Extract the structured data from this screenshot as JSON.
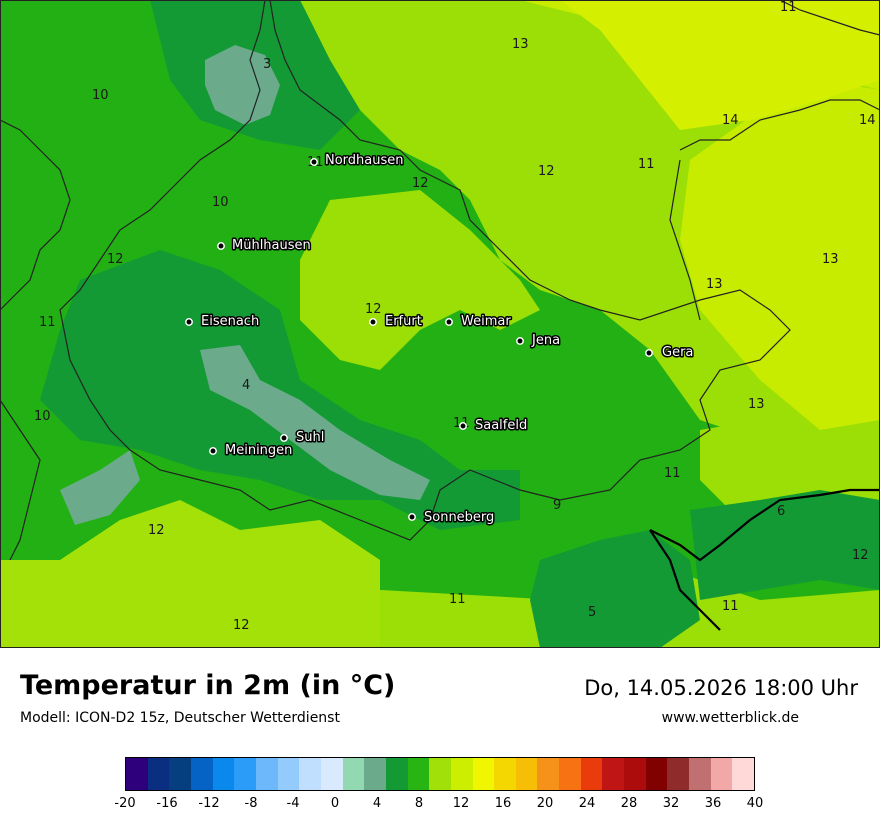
{
  "title": "Temperatur in 2m (in °C)",
  "model": "Modell: ICON-D2 15z, Deutscher Wetterdienst",
  "datetime": "Do, 14.05.2026 18:00 Uhr",
  "website": "www.wetterblick.de",
  "cities": [
    {
      "name": "Nordhausen"
    },
    {
      "name": "Mühlhausen"
    },
    {
      "name": "Eisenach"
    },
    {
      "name": "Erfurt"
    },
    {
      "name": "Weimar"
    },
    {
      "name": "Jena"
    },
    {
      "name": "Gera"
    },
    {
      "name": "Saalfeld"
    },
    {
      "name": "Suhl"
    },
    {
      "name": "Meiningen"
    },
    {
      "name": "Sonneberg"
    }
  ],
  "isolabels": [
    "11",
    "13",
    "3",
    "10",
    "14",
    "14",
    "11",
    "12",
    "12",
    "11",
    "10",
    "12",
    "13",
    "13",
    "11",
    "12",
    "4",
    "13",
    "10",
    "11",
    "11",
    "9",
    "6",
    "12",
    "12",
    "11",
    "11",
    "12",
    "5"
  ],
  "legend": {
    "ticks": [
      "-20",
      "-16",
      "-12",
      "-8",
      "-4",
      "0",
      "4",
      "8",
      "12",
      "16",
      "20",
      "24",
      "28",
      "32",
      "36",
      "40"
    ],
    "colors": [
      "#2e007c",
      "#0b2f80",
      "#063f80",
      "#0563c6",
      "#0b88ec",
      "#2b9cf7",
      "#6cb8fb",
      "#94cbfd",
      "#c0defe",
      "#d9eafe",
      "#92d9b2",
      "#6bab8c",
      "#139a34",
      "#28b514",
      "#a2e00a",
      "#ccee00",
      "#f0f500",
      "#f4d600",
      "#f6be04",
      "#f6921a",
      "#f77212",
      "#e93b0c",
      "#c01515",
      "#ac0c0c",
      "#810000",
      "#8f2b2b",
      "#c07070",
      "#f3a8a8",
      "#ffd8d8"
    ]
  }
}
